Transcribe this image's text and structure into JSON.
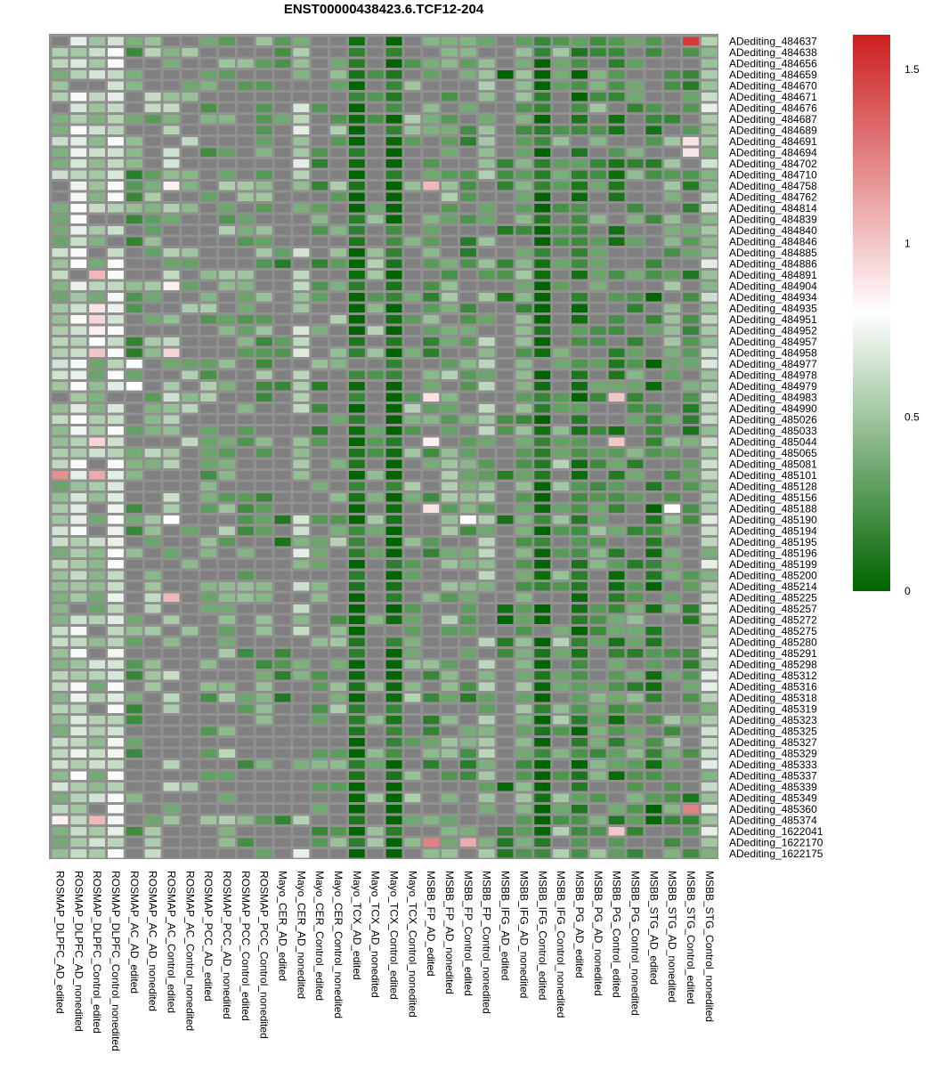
{
  "chart_data": {
    "type": "heatmap",
    "title": "ENST00000438423.6.TCF12-204",
    "columns": [
      "ROSMAP_DLPFC_AD_edited",
      "ROSMAP_DLPFC_AD_nonedited",
      "ROSMAP_DLPFC_Control_edited",
      "ROSMAP_DLPFC_Control_nonedited",
      "ROSMAP_AC_AD_edited",
      "ROSMAP_AC_AD_nonedited",
      "ROSMAP_AC_Control_edited",
      "ROSMAP_AC_Control_nonedited",
      "ROSMAP_PCC_AD_edited",
      "ROSMAP_PCC_AD_nonedited",
      "ROSMAP_PCC_Control_edited",
      "ROSMAP_PCC_Control_nonedited",
      "Mayo_CER_AD_edited",
      "Mayo_CER_AD_nonedited",
      "Mayo_CER_Control_edited",
      "Mayo_CER_Control_nonedited",
      "Mayo_TCX_AD_edited",
      "Mayo_TCX_AD_nonedited",
      "Mayo_TCX_Control_edited",
      "Mayo_TCX_Control_nonedited",
      "MSBB_FP_AD_edited",
      "MSBB_FP_AD_nonedited",
      "MSBB_FP_Control_edited",
      "MSBB_FP_Control_nonedited",
      "MSBB_IFG_AD_edited",
      "MSBB_IFG_AD_nonedited",
      "MSBB_IFG_Control_edited",
      "MSBB_IFG_Control_nonedited",
      "MSBB_PG_AD_edited",
      "MSBB_PG_AD_nonedited",
      "MSBB_PG_Control_edited",
      "MSBB_PG_Control_nonedited",
      "MSBB_STG_AD_edited",
      "MSBB_STG_AD_nonedited",
      "MSBB_STG_Control_edited",
      "MSBB_STG_Control_nonedited"
    ],
    "rows": [
      "ADediting_484637",
      "ADediting_484638",
      "ADediting_484656",
      "ADediting_484659",
      "ADediting_484670",
      "ADediting_484671",
      "ADediting_484676",
      "ADediting_484687",
      "ADediting_484689",
      "ADediting_484691",
      "ADediting_484694",
      "ADediting_484702",
      "ADediting_484710",
      "ADediting_484758",
      "ADediting_484762",
      "ADediting_484814",
      "ADediting_484839",
      "ADediting_484840",
      "ADediting_484846",
      "ADediting_484885",
      "ADediting_484886",
      "ADediting_484891",
      "ADediting_484904",
      "ADediting_484934",
      "ADediting_484935",
      "ADediting_484951",
      "ADediting_484952",
      "ADediting_484957",
      "ADediting_484958",
      "ADediting_484977",
      "ADediting_484978",
      "ADediting_484979",
      "ADediting_484983",
      "ADediting_484990",
      "ADediting_485026",
      "ADediting_485033",
      "ADediting_485044",
      "ADediting_485065",
      "ADediting_485081",
      "ADediting_485101",
      "ADediting_485128",
      "ADediting_485156",
      "ADediting_485188",
      "ADediting_485190",
      "ADediting_485194",
      "ADediting_485195",
      "ADediting_485196",
      "ADediting_485199",
      "ADediting_485200",
      "ADediting_485214",
      "ADediting_485225",
      "ADediting_485257",
      "ADediting_485272",
      "ADediting_485275",
      "ADediting_485280",
      "ADediting_485291",
      "ADediting_485298",
      "ADediting_485312",
      "ADediting_485316",
      "ADediting_485318",
      "ADediting_485319",
      "ADediting_485323",
      "ADediting_485325",
      "ADediting_485327",
      "ADediting_485329",
      "ADediting_485333",
      "ADediting_485337",
      "ADediting_485339",
      "ADediting_485349",
      "ADediting_485360",
      "ADediting_485374",
      "ADediting_1622041",
      "ADediting_1622170",
      "ADediting_1622175"
    ],
    "color_scale": {
      "min": 0,
      "max": 1.6,
      "stops": [
        {
          "value": 0,
          "color": "#006400"
        },
        {
          "value": 0.8,
          "color": "#ffffff"
        },
        {
          "value": 1.6,
          "color": "#cc1f1f"
        }
      ],
      "ticks": [
        0,
        0.5,
        1,
        1.5
      ],
      "tick_labels": [
        "0",
        "0.5",
        "1",
        "1.5"
      ],
      "missing_color": "#808080",
      "legend_position": "right"
    },
    "column_baseline": [
      0.5,
      0.65,
      0.5,
      0.72,
      0.3,
      0.45,
      0.5,
      0.45,
      0.38,
      0.42,
      0.35,
      0.35,
      0.25,
      0.55,
      0.3,
      0.4,
      0.02,
      0.4,
      0.05,
      0.4,
      0.3,
      0.4,
      0.3,
      0.45,
      0.1,
      0.35,
      0.02,
      0.4,
      0.15,
      0.35,
      0.2,
      0.3,
      0.15,
      0.35,
      0.25,
      0.55
    ],
    "column_presence": [
      0.9,
      0.95,
      0.85,
      0.98,
      0.6,
      0.6,
      0.55,
      0.45,
      0.5,
      0.6,
      0.45,
      0.6,
      0.3,
      0.5,
      0.4,
      0.5,
      0.98,
      0.4,
      0.98,
      0.5,
      0.6,
      0.7,
      0.6,
      0.7,
      0.3,
      0.98,
      0.98,
      0.6,
      0.9,
      0.7,
      0.8,
      0.7,
      0.6,
      0.6,
      0.7,
      0.98
    ],
    "highlight_cells": [
      {
        "row": 0,
        "col": 34,
        "value": 1.5
      },
      {
        "row": 9,
        "col": 34,
        "value": 0.9
      },
      {
        "row": 10,
        "col": 34,
        "value": 0.9
      },
      {
        "row": 13,
        "col": 20,
        "value": 1.05
      },
      {
        "row": 13,
        "col": 6,
        "value": 0.85
      },
      {
        "row": 21,
        "col": 2,
        "value": 1.05
      },
      {
        "row": 22,
        "col": 6,
        "value": 0.85
      },
      {
        "row": 24,
        "col": 2,
        "value": 0.9
      },
      {
        "row": 25,
        "col": 2,
        "value": 0.95
      },
      {
        "row": 26,
        "col": 2,
        "value": 0.85
      },
      {
        "row": 27,
        "col": 2,
        "value": 0.8
      },
      {
        "row": 28,
        "col": 2,
        "value": 1.0
      },
      {
        "row": 28,
        "col": 6,
        "value": 0.95
      },
      {
        "row": 29,
        "col": 4,
        "value": 0.8
      },
      {
        "row": 31,
        "col": 4,
        "value": 0.8
      },
      {
        "row": 32,
        "col": 20,
        "value": 0.9
      },
      {
        "row": 32,
        "col": 30,
        "value": 1.0
      },
      {
        "row": 36,
        "col": 2,
        "value": 0.95
      },
      {
        "row": 36,
        "col": 20,
        "value": 0.85
      },
      {
        "row": 36,
        "col": 30,
        "value": 1.0
      },
      {
        "row": 39,
        "col": 0,
        "value": 1.2
      },
      {
        "row": 39,
        "col": 2,
        "value": 1.1
      },
      {
        "row": 42,
        "col": 20,
        "value": 0.9
      },
      {
        "row": 42,
        "col": 33,
        "value": 0.8
      },
      {
        "row": 43,
        "col": 6,
        "value": 0.8
      },
      {
        "row": 43,
        "col": 22,
        "value": 0.8
      },
      {
        "row": 50,
        "col": 6,
        "value": 1.05
      },
      {
        "row": 69,
        "col": 34,
        "value": 1.25
      },
      {
        "row": 70,
        "col": 0,
        "value": 0.85
      },
      {
        "row": 70,
        "col": 2,
        "value": 1.05
      },
      {
        "row": 71,
        "col": 30,
        "value": 1.0
      },
      {
        "row": 72,
        "col": 20,
        "value": 1.25
      },
      {
        "row": 72,
        "col": 22,
        "value": 1.1
      }
    ]
  }
}
